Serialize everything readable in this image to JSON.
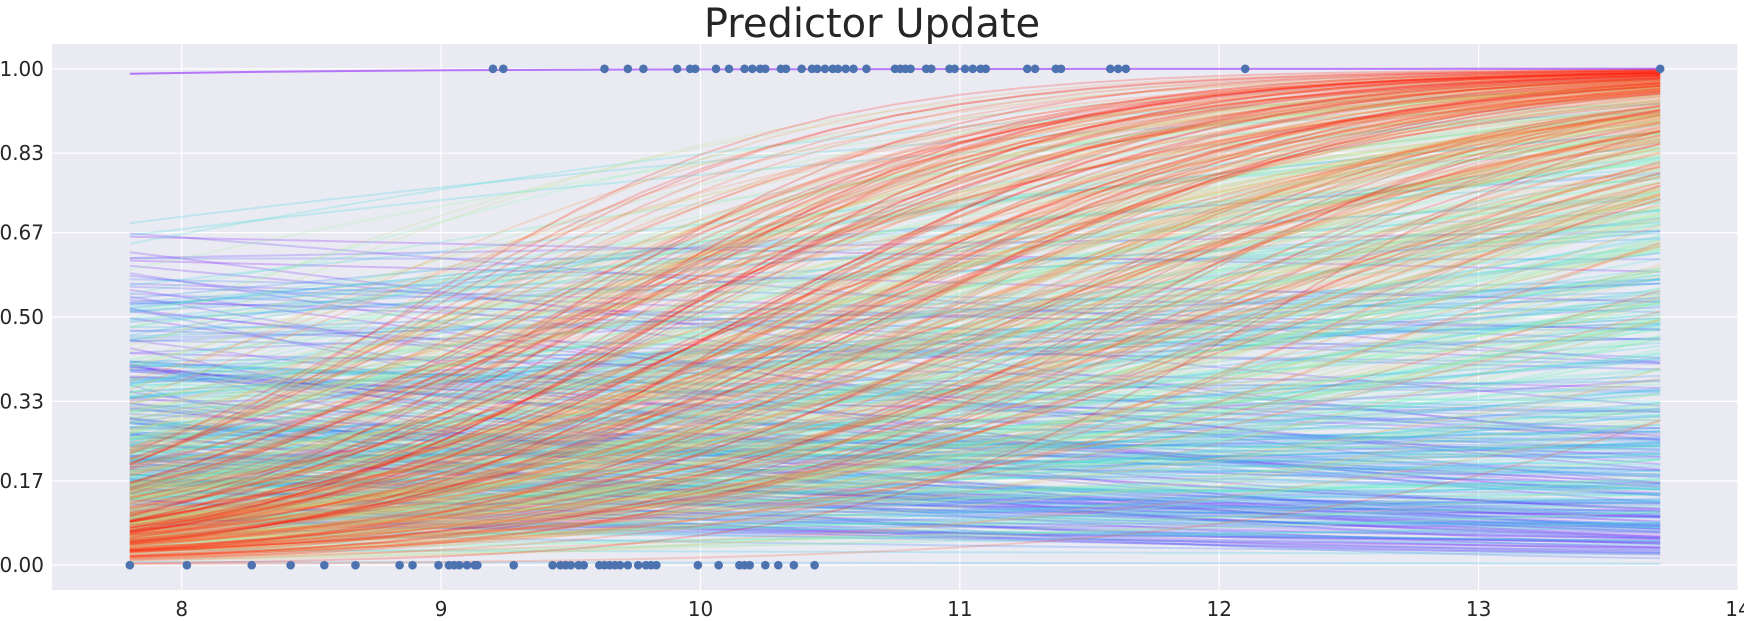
{
  "chart_data": {
    "type": "scatter",
    "title": "Predictor Update",
    "xlabel": "",
    "ylabel": "",
    "xlim": [
      7.5,
      14.0
    ],
    "ylim": [
      -0.05,
      1.05
    ],
    "xticks": [
      8,
      9,
      10,
      11,
      12,
      13,
      14
    ],
    "yticks": [
      0.0,
      0.17,
      0.33,
      0.5,
      0.67,
      0.83,
      1.0
    ],
    "ytick_labels": [
      "0.00",
      "0.17",
      "0.33",
      "0.50",
      "0.67",
      "0.83",
      "1.00"
    ],
    "grid": true,
    "background": "#eaeaf2",
    "point_color": "#4c72b0",
    "curve_colormap": [
      "#8000ff",
      "#2c7ef7",
      "#2adddd",
      "#80ffb4",
      "#d4dd80",
      "#ff7f41",
      "#ff0000"
    ],
    "curve_x_range": [
      7.8,
      13.7
    ],
    "points": {
      "y1_x": [
        9.2,
        9.24,
        9.63,
        9.72,
        9.78,
        9.91,
        9.96,
        9.98,
        10.06,
        10.11,
        10.17,
        10.2,
        10.23,
        10.25,
        10.31,
        10.33,
        10.39,
        10.43,
        10.45,
        10.48,
        10.51,
        10.53,
        10.56,
        10.59,
        10.64,
        10.75,
        10.77,
        10.79,
        10.81,
        10.87,
        10.89,
        10.96,
        10.98,
        11.02,
        11.05,
        11.08,
        11.1,
        11.26,
        11.29,
        11.37,
        11.39,
        11.58,
        11.61,
        11.64,
        12.1,
        13.7
      ],
      "y0_x": [
        7.8,
        8.02,
        8.27,
        8.42,
        8.55,
        8.67,
        8.84,
        8.89,
        8.99,
        9.03,
        9.05,
        9.07,
        9.1,
        9.13,
        9.14,
        9.28,
        9.43,
        9.46,
        9.48,
        9.5,
        9.53,
        9.55,
        9.61,
        9.63,
        9.65,
        9.67,
        9.69,
        9.72,
        9.76,
        9.79,
        9.81,
        9.83,
        9.99,
        10.07,
        10.15,
        10.17,
        10.19,
        10.25,
        10.3,
        10.36,
        10.44
      ]
    }
  }
}
